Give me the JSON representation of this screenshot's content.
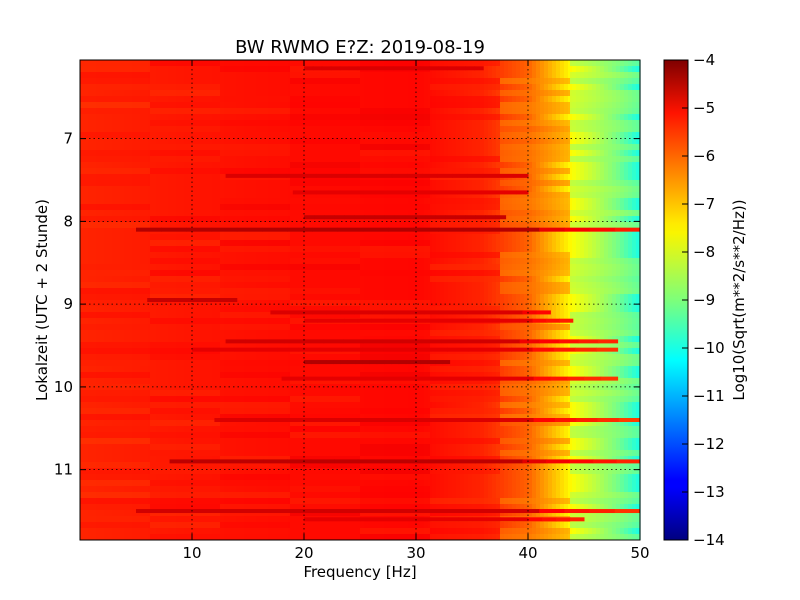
{
  "chart_data": {
    "type": "heatmap",
    "title": "BW RWMO E?Z: 2019-08-19",
    "xlabel": "Frequency [Hz]",
    "ylabel": "Lokalzeit (UTC + 2 Stunde)",
    "colorbar_label": "Log10(Sqrt(m**2/s**2/Hz))",
    "colormap": "jet",
    "grid": true,
    "x": {
      "min": 0,
      "max": 50
    },
    "y": {
      "min": 6.05,
      "max": 11.85,
      "inverted": true
    },
    "x_ticks": [
      {
        "value": 10,
        "label": "10"
      },
      {
        "value": 20,
        "label": "20"
      },
      {
        "value": 30,
        "label": "30"
      },
      {
        "value": 40,
        "label": "40"
      },
      {
        "value": 50,
        "label": "50"
      }
    ],
    "y_ticks": [
      {
        "value": 7,
        "label": "7"
      },
      {
        "value": 8,
        "label": "8"
      },
      {
        "value": 9,
        "label": "9"
      },
      {
        "value": 10,
        "label": "10"
      },
      {
        "value": 11,
        "label": "11"
      }
    ],
    "colorbar": {
      "min": -14,
      "max": -4,
      "ticks": [
        {
          "value": -4,
          "label": "−4"
        },
        {
          "value": -5,
          "label": "−5"
        },
        {
          "value": -6,
          "label": "−6"
        },
        {
          "value": -7,
          "label": "−7"
        },
        {
          "value": -8,
          "label": "−8"
        },
        {
          "value": -9,
          "label": "−9"
        },
        {
          "value": -10,
          "label": "−10"
        },
        {
          "value": -11,
          "label": "−11"
        },
        {
          "value": -12,
          "label": "−12"
        },
        {
          "value": -13,
          "label": "−13"
        },
        {
          "value": -14,
          "label": "−14"
        }
      ]
    },
    "frequency_profile": [
      {
        "freq": 0,
        "value": -5.6
      },
      {
        "freq": 10,
        "value": -5.45
      },
      {
        "freq": 20,
        "value": -5.35
      },
      {
        "freq": 30,
        "value": -5.3
      },
      {
        "freq": 36,
        "value": -5.6
      },
      {
        "freq": 40,
        "value": -6.2
      },
      {
        "freq": 42,
        "value": -7.0
      },
      {
        "freq": 44,
        "value": -7.8
      },
      {
        "freq": 46,
        "value": -8.4
      },
      {
        "freq": 48,
        "value": -9.1
      },
      {
        "freq": 49.5,
        "value": -9.8
      },
      {
        "freq": 50,
        "value": -10.0
      }
    ],
    "strong_bands": [
      {
        "time": 6.15,
        "value": -4.9,
        "from_freq": 20,
        "to_freq": 36
      },
      {
        "time": 7.45,
        "value": -4.9,
        "from_freq": 13,
        "to_freq": 40
      },
      {
        "time": 7.65,
        "value": -5.0,
        "from_freq": 19,
        "to_freq": 40
      },
      {
        "time": 7.95,
        "value": -4.7,
        "from_freq": 20,
        "to_freq": 38
      },
      {
        "time": 8.1,
        "value": -4.5,
        "from_freq": 5,
        "to_freq": 50
      },
      {
        "time": 8.95,
        "value": -4.7,
        "from_freq": 6,
        "to_freq": 14
      },
      {
        "time": 9.1,
        "value": -4.9,
        "from_freq": 17,
        "to_freq": 42
      },
      {
        "time": 9.2,
        "value": -5.0,
        "from_freq": 20,
        "to_freq": 44
      },
      {
        "time": 9.45,
        "value": -4.8,
        "from_freq": 13,
        "to_freq": 48
      },
      {
        "time": 9.55,
        "value": -5.0,
        "from_freq": 10,
        "to_freq": 48
      },
      {
        "time": 9.7,
        "value": -4.5,
        "from_freq": 20,
        "to_freq": 33
      },
      {
        "time": 9.9,
        "value": -5.0,
        "from_freq": 18,
        "to_freq": 48
      },
      {
        "time": 10.4,
        "value": -4.9,
        "from_freq": 12,
        "to_freq": 50
      },
      {
        "time": 10.9,
        "value": -4.6,
        "from_freq": 8,
        "to_freq": 50
      },
      {
        "time": 11.5,
        "value": -4.8,
        "from_freq": 5,
        "to_freq": 50
      },
      {
        "time": 11.6,
        "value": -5.0,
        "from_freq": 20,
        "to_freq": 45
      }
    ]
  }
}
